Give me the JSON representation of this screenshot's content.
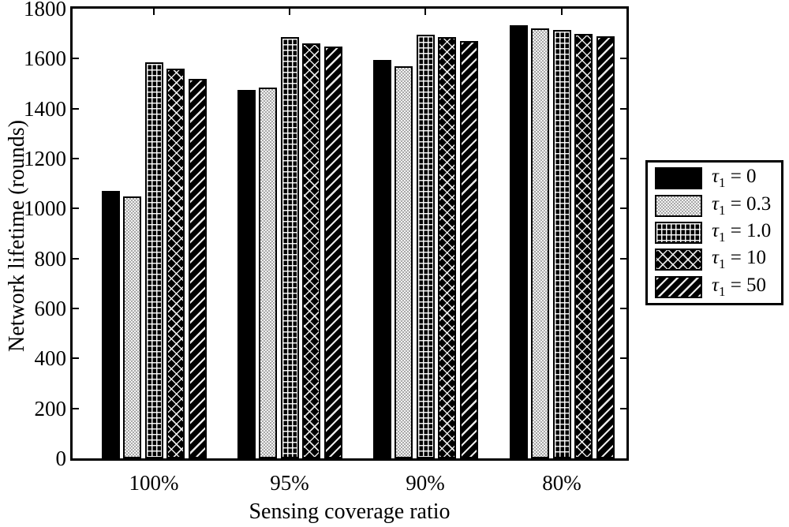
{
  "figure": {
    "background": "#ffffff",
    "foreground": "#000000"
  },
  "chart_data": {
    "type": "bar",
    "title": "",
    "xlabel": "Sensing coverage ratio",
    "ylabel": "Network lifetime (rounds)",
    "ylim": [
      0,
      1800
    ],
    "ytick_step": 200,
    "ytick_labels_top_to_bottom": [
      "1800",
      "1600",
      "1400",
      "1200",
      "1000",
      "800",
      "600",
      "400",
      "200",
      "0"
    ],
    "grid": false,
    "legend_position": "outside-right",
    "categories": [
      "100%",
      "95%",
      "90%",
      "80%"
    ],
    "series": [
      {
        "name": "tau1 = 0",
        "legend": {
          "symbol": "τ",
          "sub": "1",
          "rest": " = 0"
        },
        "pattern": "solid",
        "values": [
          1070,
          1475,
          1595,
          1735
        ]
      },
      {
        "name": "tau1 = 0.3",
        "legend": {
          "symbol": "τ",
          "sub": "1",
          "rest": " = 0.3"
        },
        "pattern": "stipple",
        "values": [
          1050,
          1485,
          1570,
          1720
        ]
      },
      {
        "name": "tau1 = 1.0",
        "legend": {
          "symbol": "τ",
          "sub": "1",
          "rest": " = 1.0"
        },
        "pattern": "grid",
        "values": [
          1585,
          1685,
          1695,
          1715
        ]
      },
      {
        "name": "tau1 = 10",
        "legend": {
          "symbol": "τ",
          "sub": "1",
          "rest": " = 10"
        },
        "pattern": "crosshatch",
        "values": [
          1560,
          1660,
          1685,
          1700
        ]
      },
      {
        "name": "tau1 = 50",
        "legend": {
          "symbol": "τ",
          "sub": "1",
          "rest": " = 50"
        },
        "pattern": "diagonal",
        "values": [
          1520,
          1650,
          1670,
          1690
        ]
      }
    ],
    "colors": {
      "bar_solid": "#000000",
      "stipple_background": "#f2f2f2",
      "stipple_dot": "#a8a8a8",
      "pattern_background": "#000000",
      "pattern_line": "#ffffff",
      "axis": "#000000"
    }
  }
}
